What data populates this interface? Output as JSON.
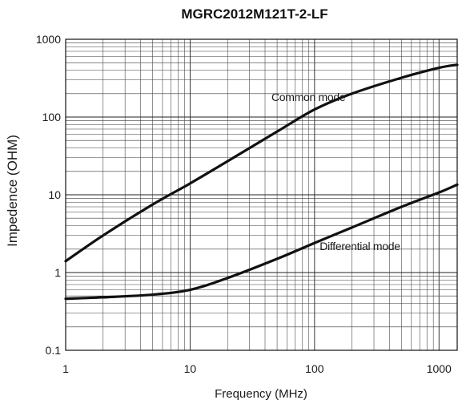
{
  "chart_data": {
    "type": "line",
    "title": "MGRC2012M121T-2-LF",
    "xlabel": "Frequency (MHz)",
    "ylabel": "Impedence (OHM)",
    "x_scale": "log",
    "y_scale": "log",
    "xlim": [
      1,
      1400
    ],
    "ylim": [
      0.1,
      1000
    ],
    "grid": true,
    "x_ticks": [
      {
        "value": 1,
        "label": "1"
      },
      {
        "value": 10,
        "label": "10"
      },
      {
        "value": 100,
        "label": "100"
      },
      {
        "value": 1000,
        "label": "1000"
      }
    ],
    "y_ticks": [
      {
        "value": 0.1,
        "label": "0.1"
      },
      {
        "value": 1,
        "label": "1"
      },
      {
        "value": 10,
        "label": "10"
      },
      {
        "value": 100,
        "label": "100"
      },
      {
        "value": 1000,
        "label": "1000"
      }
    ],
    "series": [
      {
        "name": "Common mode",
        "color": "#111111",
        "x": [
          1,
          2,
          5,
          10,
          20,
          50,
          100,
          200,
          500,
          1000,
          1400
        ],
        "y": [
          1.4,
          3.0,
          7.5,
          14,
          27,
          65,
          125,
          200,
          320,
          430,
          470
        ]
      },
      {
        "name": "Differential mode",
        "color": "#111111",
        "x": [
          1,
          2,
          5,
          10,
          20,
          50,
          100,
          200,
          500,
          1000,
          1400
        ],
        "y": [
          0.46,
          0.48,
          0.52,
          0.6,
          0.85,
          1.5,
          2.4,
          3.8,
          7.0,
          10.7,
          13.5
        ]
      }
    ],
    "annotations": [
      {
        "text": "Common mode",
        "series": "Common mode"
      },
      {
        "text": "Differential mode",
        "series": "Differential mode"
      }
    ]
  }
}
